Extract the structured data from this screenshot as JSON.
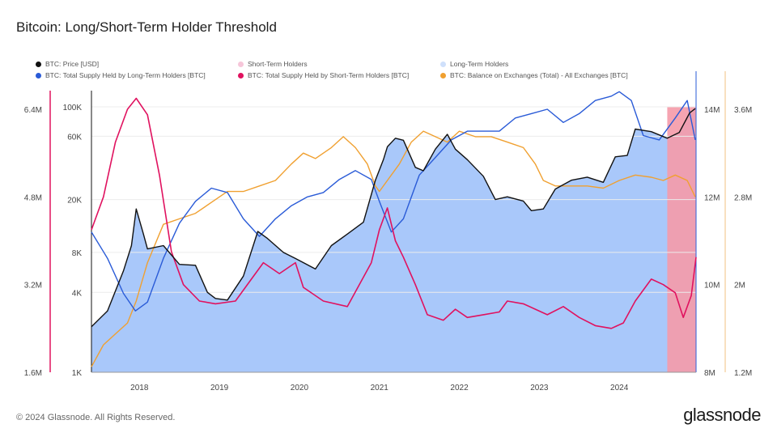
{
  "title": "Bitcoin: Long/Short-Term Holder Threshold",
  "footer": "© 2024 Glassnode. All Rights Reserved.",
  "brand": "glassnode",
  "legend": [
    {
      "label": "BTC: Price [USD]",
      "color": "#111111"
    },
    {
      "label": "Short-Term Holders",
      "color": "#f6c6d9"
    },
    {
      "label": "Long-Term Holders",
      "color": "#cfe0fb"
    },
    {
      "label": "BTC: Total Supply Held by Long-Term Holders [BTC]",
      "color": "#2a5bd7"
    },
    {
      "label": "BTC: Total Supply Held by Short-Term Holders [BTC]",
      "color": "#e0125f"
    },
    {
      "label": "BTC: Balance on Exchanges (Total) - All Exchanges [BTC]",
      "color": "#f0a030"
    }
  ],
  "chart_data": {
    "type": "line",
    "x_ticks": [
      "2018",
      "2019",
      "2020",
      "2021",
      "2022",
      "2023",
      "2024"
    ],
    "axes": {
      "sth_supply": {
        "ticks": [
          "6.4M",
          "4.8M",
          "3.2M",
          "1.6M"
        ],
        "values": [
          6400000,
          4800000,
          3200000,
          1600000
        ],
        "color": "#e0125f"
      },
      "price": {
        "ticks": [
          "100K",
          "60K",
          "20K",
          "8K",
          "4K",
          "1K"
        ],
        "values": [
          100000,
          60000,
          20000,
          8000,
          4000,
          1000
        ],
        "scale": "log"
      },
      "lth_supply": {
        "ticks": [
          "14M",
          "12M",
          "10M",
          "8M"
        ],
        "values": [
          14000000,
          12000000,
          10000000,
          8000000
        ],
        "color": "#2a5bd7"
      },
      "exchange_balance": {
        "ticks": [
          "3.6M",
          "2.8M",
          "2M",
          "1.2M"
        ],
        "values": [
          3600000,
          2800000,
          2000000,
          1200000
        ],
        "color": "#f0a030"
      }
    },
    "series": [
      {
        "name": "BTC: Price [USD]",
        "color": "#111111",
        "x": [
          2017.4,
          2017.6,
          2017.8,
          2017.9,
          2017.96,
          2018.05,
          2018.1,
          2018.3,
          2018.5,
          2018.7,
          2018.85,
          2018.95,
          2019.1,
          2019.3,
          2019.48,
          2019.6,
          2019.8,
          2019.95,
          2020.2,
          2020.4,
          2020.6,
          2020.8,
          2020.95,
          2021.05,
          2021.1,
          2021.2,
          2021.3,
          2021.45,
          2021.55,
          2021.7,
          2021.85,
          2021.95,
          2022.1,
          2022.3,
          2022.45,
          2022.6,
          2022.8,
          2022.9,
          2023.05,
          2023.2,
          2023.4,
          2023.6,
          2023.8,
          2023.95,
          2024.1,
          2024.2,
          2024.4,
          2024.6,
          2024.75,
          2024.88,
          2024.95
        ],
        "values": [
          2200,
          2900,
          5800,
          9000,
          17000,
          11000,
          8500,
          9000,
          6500,
          6400,
          4000,
          3600,
          3500,
          5300,
          11500,
          10200,
          8000,
          7200,
          6000,
          9000,
          11000,
          13500,
          28000,
          40000,
          50000,
          58000,
          56000,
          35000,
          33000,
          48000,
          62000,
          48000,
          40000,
          30000,
          20000,
          21000,
          19500,
          16500,
          17000,
          24000,
          28000,
          29500,
          27000,
          42000,
          43000,
          68000,
          65000,
          58000,
          64000,
          90000,
          97000
        ]
      },
      {
        "name": "BTC: Total Supply Held by Long-Term Holders [BTC]",
        "color": "#2a5bd7",
        "x": [
          2017.4,
          2017.6,
          2017.8,
          2017.95,
          2018.1,
          2018.3,
          2018.5,
          2018.7,
          2018.9,
          2019.1,
          2019.3,
          2019.5,
          2019.7,
          2019.9,
          2020.1,
          2020.3,
          2020.5,
          2020.7,
          2020.9,
          2021.0,
          2021.15,
          2021.3,
          2021.5,
          2021.7,
          2021.9,
          2022.1,
          2022.3,
          2022.5,
          2022.7,
          2022.9,
          2023.1,
          2023.3,
          2023.5,
          2023.7,
          2023.9,
          2024.0,
          2024.15,
          2024.3,
          2024.5,
          2024.7,
          2024.85,
          2024.95
        ],
        "values": [
          11200000,
          10600000,
          9800000,
          9400000,
          9600000,
          10600000,
          11400000,
          11900000,
          12200000,
          12100000,
          11500000,
          11100000,
          11500000,
          11800000,
          12000000,
          12100000,
          12400000,
          12600000,
          12400000,
          11900000,
          11200000,
          11500000,
          12500000,
          12900000,
          13300000,
          13500000,
          13500000,
          13500000,
          13800000,
          13900000,
          14000000,
          13700000,
          13900000,
          14200000,
          14300000,
          14400000,
          14200000,
          13400000,
          13300000,
          13800000,
          14200000,
          13300000
        ]
      },
      {
        "name": "BTC: Total Supply Held by Short-Term Holders [BTC]",
        "color": "#e0125f",
        "x": [
          2017.4,
          2017.55,
          2017.7,
          2017.85,
          2017.96,
          2018.1,
          2018.25,
          2018.4,
          2018.55,
          2018.75,
          2018.95,
          2019.2,
          2019.4,
          2019.55,
          2019.75,
          2019.95,
          2020.05,
          2020.3,
          2020.6,
          2020.9,
          2021.0,
          2021.1,
          2021.2,
          2021.3,
          2021.45,
          2021.6,
          2021.8,
          2021.95,
          2022.1,
          2022.3,
          2022.5,
          2022.6,
          2022.8,
          2022.95,
          2023.1,
          2023.3,
          2023.5,
          2023.7,
          2023.9,
          2024.05,
          2024.2,
          2024.4,
          2024.55,
          2024.7,
          2024.8,
          2024.9,
          2024.96
        ],
        "values": [
          4200000,
          4800000,
          5800000,
          6400000,
          6600000,
          6300000,
          5200000,
          3800000,
          3200000,
          2900000,
          2850000,
          2900000,
          3300000,
          3600000,
          3400000,
          3600000,
          3150000,
          2900000,
          2800000,
          3600000,
          4200000,
          4600000,
          4000000,
          3700000,
          3200000,
          2650000,
          2550000,
          2750000,
          2600000,
          2650000,
          2700000,
          2900000,
          2850000,
          2750000,
          2650000,
          2800000,
          2600000,
          2450000,
          2400000,
          2500000,
          2900000,
          3300000,
          3200000,
          3050000,
          2600000,
          3000000,
          3700000
        ]
      },
      {
        "name": "BTC: Balance on Exchanges (Total) - All Exchanges [BTC]",
        "color": "#f0a030",
        "x": [
          2017.4,
          2017.55,
          2017.7,
          2017.85,
          2017.96,
          2018.1,
          2018.3,
          2018.5,
          2018.7,
          2018.9,
          2019.1,
          2019.3,
          2019.5,
          2019.7,
          2019.9,
          2020.05,
          2020.2,
          2020.4,
          2020.55,
          2020.7,
          2020.85,
          2020.95,
          2021.0,
          2021.1,
          2021.25,
          2021.4,
          2021.55,
          2021.7,
          2021.85,
          2022.0,
          2022.2,
          2022.4,
          2022.6,
          2022.8,
          2022.95,
          2023.05,
          2023.2,
          2023.4,
          2023.6,
          2023.8,
          2024.0,
          2024.2,
          2024.4,
          2024.55,
          2024.7,
          2024.85,
          2024.95
        ],
        "values": [
          1250000,
          1450000,
          1550000,
          1650000,
          1850000,
          2200000,
          2550000,
          2600000,
          2650000,
          2750000,
          2850000,
          2850000,
          2900000,
          2950000,
          3100000,
          3200000,
          3150000,
          3250000,
          3350000,
          3250000,
          3100000,
          2900000,
          2850000,
          2950000,
          3100000,
          3300000,
          3400000,
          3350000,
          3300000,
          3400000,
          3350000,
          3350000,
          3300000,
          3250000,
          3100000,
          2950000,
          2900000,
          2900000,
          2900000,
          2880000,
          2950000,
          3000000,
          2980000,
          2950000,
          3000000,
          2950000,
          2800000
        ]
      }
    ],
    "background_regions": [
      {
        "name": "Long-Term Holders",
        "color": "#cfe0fb"
      },
      {
        "name": "Short-Term Holders",
        "color": "#f6c6d9"
      }
    ]
  }
}
